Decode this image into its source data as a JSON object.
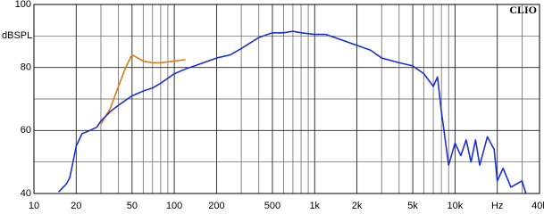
{
  "chart_data": {
    "type": "line",
    "brand": "CLIO",
    "y_label": "dBSPL",
    "xscale": "log",
    "xlim": [
      10,
      40000
    ],
    "ylim": [
      40,
      100
    ],
    "xticks": [
      10,
      20,
      50,
      100,
      200,
      500,
      {
        "value": 1000,
        "label": "1k"
      },
      {
        "value": 2000,
        "label": "2k"
      },
      {
        "value": 5000,
        "label": "5k"
      },
      {
        "value": 10000,
        "label": "10k"
      },
      {
        "value": 20000,
        "label": "Hz"
      },
      {
        "value": 40000,
        "label": "40k"
      }
    ],
    "minor_xticks": [
      30,
      40,
      60,
      70,
      80,
      90,
      300,
      400,
      600,
      700,
      800,
      900,
      3000,
      4000,
      6000,
      7000,
      8000,
      9000,
      30000
    ],
    "yticks": [
      40,
      60,
      80,
      100
    ],
    "minor_yticks": [
      50,
      70,
      90
    ],
    "grid": true,
    "series": [
      {
        "name": "response",
        "color": "#1c2fd8",
        "x": [
          15,
          17,
          18,
          20,
          22,
          25,
          28,
          30,
          35,
          40,
          50,
          60,
          70,
          80,
          100,
          120,
          150,
          200,
          250,
          300,
          400,
          500,
          600,
          700,
          800,
          1000,
          1200,
          1500,
          2000,
          2500,
          3000,
          4000,
          5000,
          6000,
          7000,
          7500,
          8000,
          9000,
          10000,
          11000,
          12000,
          13000,
          14000,
          15000,
          17000,
          19000,
          20000,
          22000,
          25000,
          30000,
          32000
        ],
        "values": [
          40.5,
          43,
          45,
          55,
          59,
          60,
          61,
          63,
          66,
          68,
          71,
          72.5,
          73.5,
          75,
          78,
          79.5,
          81,
          83,
          84,
          86,
          89.5,
          91,
          91,
          91.5,
          91,
          90.5,
          90.5,
          89,
          87,
          85.5,
          83,
          81.5,
          80.5,
          78,
          74,
          77,
          66,
          49,
          56,
          52,
          57,
          50,
          57,
          49,
          58,
          54,
          44,
          48,
          42,
          44,
          40
        ]
      },
      {
        "name": "response-lf",
        "color": "#e07a10",
        "x": [
          30,
          35,
          40,
          45,
          50,
          55,
          60,
          70,
          80,
          100,
          120
        ],
        "values": [
          62,
          67,
          74,
          80,
          84,
          83,
          82,
          81.5,
          81.5,
          82,
          82.5
        ]
      }
    ]
  }
}
